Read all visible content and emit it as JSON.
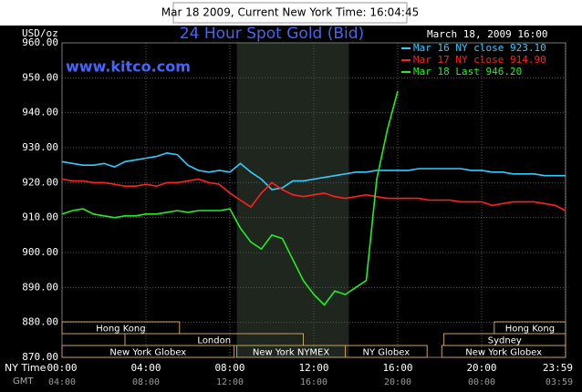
{
  "banner": "Mar 18 2009, Current New York Time: 16:04:45",
  "chart_data": {
    "type": "line",
    "title": "24 Hour Spot Gold (Bid)",
    "watermark": "www.kitco.com",
    "timestamp": "March 18, 2009 16:00",
    "y_label": "USD/oz",
    "x_label": "NY Time",
    "x2_label": "GMT",
    "legend": "top-right",
    "grid": true,
    "x": [
      0,
      0.5,
      1,
      1.5,
      2,
      2.5,
      3,
      3.5,
      4,
      4.5,
      5,
      5.5,
      6,
      6.5,
      7,
      7.5,
      8,
      8.5,
      9,
      9.5,
      10,
      10.5,
      11,
      11.5,
      12,
      12.5,
      13,
      13.5,
      14,
      14.5,
      15,
      15.5,
      16,
      16.5,
      17,
      17.5,
      18,
      18.5,
      19,
      19.5,
      20,
      20.5,
      21,
      21.5,
      22,
      22.5,
      23,
      23.5,
      24
    ],
    "series": [
      {
        "name": "Mar 16 NY close 923.10",
        "color": "#33ccff",
        "values": [
          926,
          925.5,
          925,
          925,
          925.5,
          924.5,
          926,
          926.5,
          927,
          927.5,
          928.5,
          928,
          925,
          923.5,
          923,
          923.5,
          923,
          925.5,
          923,
          921,
          918,
          918.5,
          920.5,
          920.5,
          921,
          921.5,
          922,
          922.5,
          923,
          923,
          923.5,
          923.5,
          923.5,
          923.5,
          924,
          924,
          924,
          924,
          924,
          923.5,
          923.5,
          923,
          923,
          922.5,
          922.5,
          922.5,
          922,
          922,
          922
        ]
      },
      {
        "name": "Mar 17 NY close 914.90",
        "color": "#ff2020",
        "values": [
          921,
          920.5,
          920.5,
          920,
          920,
          919.5,
          919,
          919,
          919.5,
          919,
          920,
          920,
          920.5,
          921,
          920,
          919.5,
          917,
          915,
          913,
          917,
          920,
          918,
          916.5,
          916,
          916.5,
          917,
          916,
          915.5,
          916,
          916.5,
          916,
          915.5,
          915.5,
          915.5,
          915.5,
          915,
          915,
          915,
          914.5,
          914.5,
          914.5,
          913.5,
          914,
          914.5,
          914.5,
          914.5,
          914,
          913.5,
          912
        ]
      },
      {
        "name": "Mar 18 Last 946.20",
        "color": "#22ee22",
        "values": [
          911,
          912,
          912.5,
          911,
          910.5,
          910,
          910.5,
          910.5,
          911,
          911,
          911.5,
          912,
          911.5,
          912,
          912,
          912,
          912.5,
          907,
          903,
          901,
          905,
          904,
          898,
          892,
          888,
          885,
          889,
          888,
          890,
          892,
          921,
          935,
          946.2,
          null,
          null,
          null,
          null,
          null,
          null,
          null,
          null,
          null,
          null,
          null,
          null,
          null,
          null,
          null,
          null
        ]
      }
    ],
    "xlim": [
      0,
      24
    ],
    "ylim": [
      870,
      960
    ],
    "yticks": [
      {
        "value": 870,
        "label": "870.00"
      },
      {
        "value": 880,
        "label": "880.00"
      },
      {
        "value": 890,
        "label": "890.00"
      },
      {
        "value": 900,
        "label": "900.00"
      },
      {
        "value": 910,
        "label": "910.00"
      },
      {
        "value": 920,
        "label": "920.00"
      },
      {
        "value": 930,
        "label": "930.00"
      },
      {
        "value": 940,
        "label": "940.00"
      },
      {
        "value": 950,
        "label": "950.00"
      },
      {
        "value": 960,
        "label": "960.00"
      }
    ],
    "xticks": [
      {
        "value": 0,
        "label": "00:00"
      },
      {
        "value": 4,
        "label": "04:00"
      },
      {
        "value": 8,
        "label": "08:00"
      },
      {
        "value": 12,
        "label": "12:00"
      },
      {
        "value": 16,
        "label": "16:00"
      },
      {
        "value": 20,
        "label": "20:00"
      },
      {
        "value": 23.98,
        "label": "23:59"
      }
    ],
    "x2tick_labels": [
      "04:00",
      "08:00",
      "12:00",
      "16:00",
      "20:00",
      "00:00",
      "03:59"
    ],
    "shaded_range": [
      8.33,
      13.67
    ],
    "session_rows": [
      [
        {
          "label": "Hong Kong",
          "start": 0,
          "end": 5.6
        },
        {
          "label": "Hong Kong",
          "start": 20.6,
          "end": 24
        }
      ],
      [
        {
          "label": "London",
          "start": 3,
          "end": 11.5
        },
        {
          "label": "Sydney",
          "start": 18.2,
          "end": 24
        }
      ],
      [
        {
          "label": "New York Globex",
          "start": 0,
          "end": 8.2
        },
        {
          "label": "New York NYMEX",
          "start": 8.33,
          "end": 13.5
        },
        {
          "label": "NY Globex",
          "start": 13.5,
          "end": 17.4
        },
        {
          "label": "New York Globex",
          "start": 18.1,
          "end": 24
        }
      ]
    ]
  }
}
